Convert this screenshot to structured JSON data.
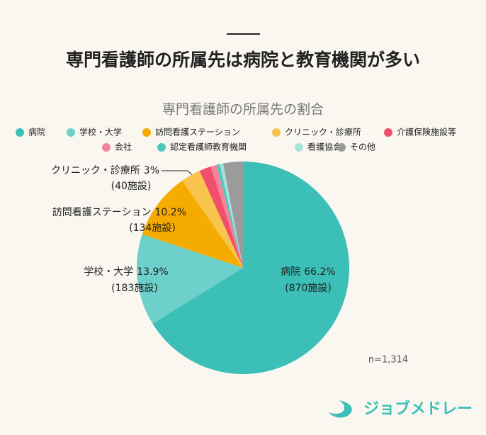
{
  "chart_data": {
    "type": "pie",
    "headline": "専門看護師の所属先は病院と教育機関が多い",
    "title": "専門看護師の所属先の割合",
    "categories": [
      "病院",
      "学校・大学",
      "訪問看護ステーション",
      "クリニック・診療所",
      "介護保険施設等",
      "会社",
      "認定看護師教育機関",
      "看護協会",
      "その他"
    ],
    "values": [
      66.2,
      13.9,
      10.2,
      3,
      1.8,
      0.9,
      0.5,
      0.5,
      3.0
    ],
    "value_labels": [
      "66.2%",
      "13.9%",
      "10.2%",
      "3%",
      null,
      null,
      null,
      null,
      null
    ],
    "count_labels": [
      "(870施設)",
      "(183施設)",
      "(134施設)",
      "(40施設)",
      null,
      null,
      null,
      null,
      null
    ],
    "colors": [
      "#3bbfb6",
      "#6dd0ca",
      "#f5ab00",
      "#f8c44e",
      "#f24f6c",
      "#f4829a",
      "#50c8c0",
      "#a6e2dd",
      "#9b9b9b"
    ],
    "note": "n=1,314",
    "brand": "ジョブメドレー"
  }
}
